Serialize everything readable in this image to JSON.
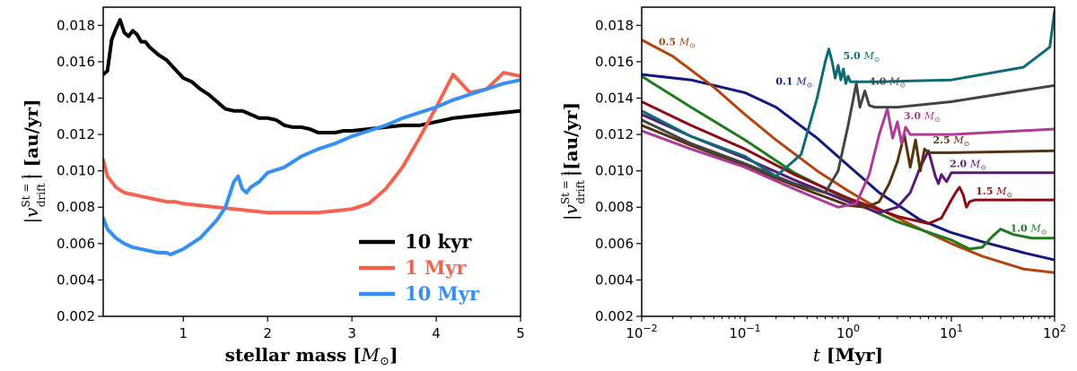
{
  "chart_data": [
    {
      "type": "line",
      "xlabel": "stellar mass [M_⊙]",
      "xlabel_text": "stellar mass [",
      "xlabel_sym": "M",
      "xlabel_sub": "⊙",
      "xlabel_end": "]",
      "ylabel_main": "|v",
      "ylabel_sup": "St = 1",
      "ylabel_sub": "drift",
      "ylabel_unit": "| [au/yr]",
      "xlim": [
        0.05,
        5
      ],
      "ylim": [
        0.002,
        0.019
      ],
      "xticks": [
        1,
        2,
        3,
        4,
        5
      ],
      "xtick_labels": [
        "1",
        "2",
        "3",
        "4",
        "5"
      ],
      "yticks": [
        0.002,
        0.004,
        0.006,
        0.008,
        0.01,
        0.012,
        0.014,
        0.016,
        0.018
      ],
      "ytick_labels": [
        "0.002",
        "0.004",
        "0.006",
        "0.008",
        "0.010",
        "0.012",
        "0.014",
        "0.016",
        "0.018"
      ],
      "legend_position": "lower-right",
      "series": [
        {
          "name": "10 kyr",
          "color": "#000000",
          "x": [
            0.05,
            0.1,
            0.15,
            0.2,
            0.25,
            0.3,
            0.35,
            0.4,
            0.45,
            0.5,
            0.55,
            0.6,
            0.7,
            0.8,
            0.9,
            1.0,
            1.1,
            1.2,
            1.3,
            1.4,
            1.5,
            1.6,
            1.7,
            1.8,
            1.9,
            2.0,
            2.1,
            2.2,
            2.3,
            2.4,
            2.5,
            2.6,
            2.7,
            2.8,
            2.9,
            3.0,
            3.2,
            3.4,
            3.6,
            3.8,
            4.0,
            4.2,
            4.4,
            4.6,
            4.8,
            5.0
          ],
          "values": [
            0.0153,
            0.0155,
            0.0172,
            0.0178,
            0.0183,
            0.0176,
            0.0174,
            0.0177,
            0.0175,
            0.0171,
            0.0171,
            0.0168,
            0.0164,
            0.0161,
            0.0156,
            0.0151,
            0.0149,
            0.0145,
            0.0142,
            0.0138,
            0.0134,
            0.0133,
            0.0133,
            0.0131,
            0.0129,
            0.0129,
            0.0128,
            0.0125,
            0.0124,
            0.0124,
            0.0123,
            0.0121,
            0.0121,
            0.0121,
            0.0122,
            0.0122,
            0.0123,
            0.0124,
            0.0125,
            0.0125,
            0.0127,
            0.0129,
            0.013,
            0.0131,
            0.0132,
            0.0133
          ]
        },
        {
          "name": "1 Myr",
          "color": "#f4634f",
          "x": [
            0.05,
            0.1,
            0.2,
            0.3,
            0.4,
            0.5,
            0.6,
            0.7,
            0.8,
            0.9,
            1.0,
            1.2,
            1.4,
            1.6,
            1.8,
            2.0,
            2.2,
            2.4,
            2.6,
            2.8,
            3.0,
            3.2,
            3.4,
            3.6,
            3.8,
            4.0,
            4.2,
            4.4,
            4.6,
            4.8,
            5.0
          ],
          "values": [
            0.0106,
            0.0097,
            0.0091,
            0.0088,
            0.0087,
            0.0086,
            0.0085,
            0.0084,
            0.0083,
            0.0083,
            0.0082,
            0.0081,
            0.008,
            0.0079,
            0.0078,
            0.0077,
            0.0077,
            0.0077,
            0.0077,
            0.0078,
            0.0079,
            0.0082,
            0.009,
            0.0102,
            0.0118,
            0.0135,
            0.0153,
            0.0143,
            0.0145,
            0.0154,
            0.0152
          ]
        },
        {
          "name": "10 Myr",
          "color": "#3690f4",
          "x": [
            0.05,
            0.1,
            0.2,
            0.3,
            0.4,
            0.5,
            0.6,
            0.7,
            0.8,
            0.85,
            0.9,
            1.0,
            1.1,
            1.2,
            1.3,
            1.4,
            1.5,
            1.6,
            1.65,
            1.7,
            1.75,
            1.8,
            1.9,
            2.0,
            2.2,
            2.4,
            2.6,
            2.8,
            3.0,
            3.2,
            3.4,
            3.6,
            3.8,
            4.0,
            4.2,
            4.4,
            4.6,
            4.8,
            5.0
          ],
          "values": [
            0.0074,
            0.0068,
            0.0063,
            0.006,
            0.0058,
            0.0057,
            0.0056,
            0.0055,
            0.0055,
            0.0054,
            0.0055,
            0.0057,
            0.006,
            0.0063,
            0.0068,
            0.0073,
            0.008,
            0.0094,
            0.0097,
            0.009,
            0.0088,
            0.0091,
            0.0094,
            0.0099,
            0.0102,
            0.0108,
            0.0112,
            0.0115,
            0.0119,
            0.0122,
            0.0125,
            0.0129,
            0.0132,
            0.0135,
            0.0139,
            0.0142,
            0.0145,
            0.0148,
            0.015
          ]
        }
      ]
    },
    {
      "type": "line",
      "x_scale": "log",
      "xlabel": "t [Myr]",
      "xlabel_sym": "t",
      "xlabel_text": " [Myr]",
      "ylabel_main": "|v",
      "ylabel_sup": "St = 1",
      "ylabel_sub": "drift",
      "ylabel_unit": "|[au/yr]",
      "xlim": [
        0.01,
        100
      ],
      "ylim": [
        0.002,
        0.019
      ],
      "xticks": [
        0.01,
        0.1,
        1,
        10,
        100
      ],
      "xtick_labels": [
        {
          "base": "10",
          "exp": "−2"
        },
        {
          "base": "10",
          "exp": "−1"
        },
        {
          "base": "10",
          "exp": "0"
        },
        {
          "base": "10",
          "exp": "1"
        },
        {
          "base": "10",
          "exp": "2"
        }
      ],
      "yticks": [
        0.002,
        0.004,
        0.006,
        0.008,
        0.01,
        0.012,
        0.014,
        0.016,
        0.018
      ],
      "ytick_labels": [
        "0.002",
        "0.004",
        "0.006",
        "0.008",
        "0.010",
        "0.012",
        "0.014",
        "0.016",
        "0.018"
      ],
      "series": [
        {
          "name": "0.1 M⊙",
          "value_text": "0.1",
          "unit_text": "M",
          "unit_sub": "⊙",
          "color": "#14197e",
          "label_at": [
            0.3,
            0.01475
          ],
          "x": [
            0.01,
            0.03,
            0.1,
            0.2,
            0.5,
            1,
            2,
            5,
            10,
            20,
            50,
            100
          ],
          "values": [
            0.0153,
            0.015,
            0.0143,
            0.0135,
            0.0118,
            0.0103,
            0.0088,
            0.0073,
            0.0066,
            0.0061,
            0.0055,
            0.0051
          ]
        },
        {
          "name": "0.5 M⊙",
          "value_text": "0.5",
          "unit_text": "M",
          "unit_sub": "⊙",
          "color": "#b4440d",
          "label_at": [
            0.022,
            0.0169
          ],
          "x": [
            0.01,
            0.02,
            0.05,
            0.1,
            0.2,
            0.5,
            1,
            2,
            5,
            10,
            20,
            50,
            100
          ],
          "values": [
            0.0172,
            0.0163,
            0.0146,
            0.0131,
            0.0117,
            0.01,
            0.0089,
            0.0079,
            0.0068,
            0.006,
            0.0053,
            0.0046,
            0.0044
          ]
        },
        {
          "name": "1.0 M⊙",
          "value_text": "1.0",
          "unit_text": "M",
          "unit_sub": "⊙",
          "color": "#1f7a1f",
          "label_at": [
            56,
            0.00665
          ],
          "x": [
            0.01,
            0.03,
            0.1,
            0.3,
            1,
            3,
            10,
            15,
            20,
            25,
            30,
            40,
            60,
            100
          ],
          "values": [
            0.0152,
            0.0135,
            0.0117,
            0.0099,
            0.0084,
            0.0072,
            0.0062,
            0.0057,
            0.0058,
            0.0064,
            0.0068,
            0.0065,
            0.0063,
            0.0063
          ]
        },
        {
          "name": "1.5 M⊙",
          "value_text": "1.5",
          "unit_text": "M",
          "unit_sub": "⊙",
          "color": "#8b0c16",
          "label_at": [
            26,
            0.0087
          ],
          "x": [
            0.01,
            0.03,
            0.1,
            0.3,
            1,
            3,
            6,
            8,
            10,
            11,
            12,
            13,
            14,
            15,
            17,
            20,
            30,
            100
          ],
          "values": [
            0.0138,
            0.0125,
            0.0112,
            0.0098,
            0.0085,
            0.0075,
            0.0071,
            0.0074,
            0.0084,
            0.0088,
            0.0091,
            0.0087,
            0.008,
            0.0083,
            0.0084,
            0.0084,
            0.0084,
            0.0084
          ]
        },
        {
          "name": "2.0 M⊙",
          "value_text": "2.0",
          "unit_text": "M",
          "unit_sub": "⊙",
          "color": "#5a1a7a",
          "label_at": [
            14.5,
            0.0102
          ],
          "x": [
            0.01,
            0.03,
            0.1,
            0.3,
            1,
            2,
            3,
            4,
            5,
            6,
            7,
            7.5,
            8,
            9,
            10,
            12,
            20,
            100
          ],
          "values": [
            0.0131,
            0.0119,
            0.0107,
            0.0095,
            0.0083,
            0.0077,
            0.008,
            0.0088,
            0.0102,
            0.0111,
            0.0097,
            0.0093,
            0.0098,
            0.0094,
            0.0099,
            0.0099,
            0.0099,
            0.0099
          ]
        },
        {
          "name": "2.5 M⊙",
          "value_text": "2.5",
          "unit_text": "M",
          "unit_sub": "⊙",
          "color": "#57320f",
          "label_at": [
            10,
            0.0115
          ],
          "x": [
            0.01,
            0.03,
            0.1,
            0.3,
            1,
            1.5,
            2,
            2.5,
            3,
            3.5,
            4,
            4.5,
            5,
            5.5,
            6,
            7,
            10,
            100
          ],
          "values": [
            0.0125,
            0.0114,
            0.0103,
            0.0092,
            0.0081,
            0.008,
            0.0083,
            0.0093,
            0.0105,
            0.012,
            0.0102,
            0.0117,
            0.01,
            0.0112,
            0.011,
            0.011,
            0.011,
            0.0111
          ]
        },
        {
          "name": "3.0 M⊙",
          "value_text": "3.0",
          "unit_text": "M",
          "unit_sub": "⊙",
          "color": "#b03a9a",
          "label_at": [
            5.2,
            0.01285
          ],
          "x": [
            0.01,
            0.03,
            0.1,
            0.3,
            0.8,
            1.2,
            1.6,
            2,
            2.4,
            2.7,
            3,
            3.3,
            3.6,
            4,
            5,
            10,
            100
          ],
          "values": [
            0.0122,
            0.0112,
            0.0102,
            0.009,
            0.008,
            0.0082,
            0.0098,
            0.012,
            0.0134,
            0.0118,
            0.0127,
            0.0115,
            0.0124,
            0.012,
            0.012,
            0.012,
            0.0123
          ]
        },
        {
          "name": "4.0 M⊙",
          "value_text": "4.0",
          "unit_text": "M",
          "unit_sub": "⊙",
          "color": "#444444",
          "label_at": [
            2.4,
            0.01475
          ],
          "x": [
            0.01,
            0.03,
            0.1,
            0.3,
            0.6,
            0.8,
            1.0,
            1.2,
            1.3,
            1.45,
            1.6,
            1.8,
            2.2,
            3,
            10,
            100
          ],
          "values": [
            0.0128,
            0.0115,
            0.0104,
            0.0093,
            0.0088,
            0.01,
            0.0125,
            0.0148,
            0.0135,
            0.0144,
            0.0136,
            0.0135,
            0.0135,
            0.0135,
            0.0138,
            0.0147
          ]
        },
        {
          "name": "5.0 M⊙",
          "value_text": "5.0",
          "unit_text": "M",
          "unit_sub": "⊙",
          "color": "#0e6b74",
          "label_at": [
            1.35,
            0.01615
          ],
          "x": [
            0.01,
            0.03,
            0.1,
            0.2,
            0.35,
            0.5,
            0.6,
            0.65,
            0.7,
            0.75,
            0.8,
            0.85,
            0.9,
            0.95,
            1.0,
            1.05,
            1.1,
            1.3,
            2,
            10,
            50,
            90,
            100
          ],
          "values": [
            0.0133,
            0.0119,
            0.0108,
            0.0097,
            0.0109,
            0.014,
            0.016,
            0.0167,
            0.016,
            0.0151,
            0.0158,
            0.015,
            0.0156,
            0.0148,
            0.0152,
            0.0149,
            0.0149,
            0.0149,
            0.0149,
            0.015,
            0.0157,
            0.0168,
            0.0188
          ]
        }
      ]
    }
  ]
}
